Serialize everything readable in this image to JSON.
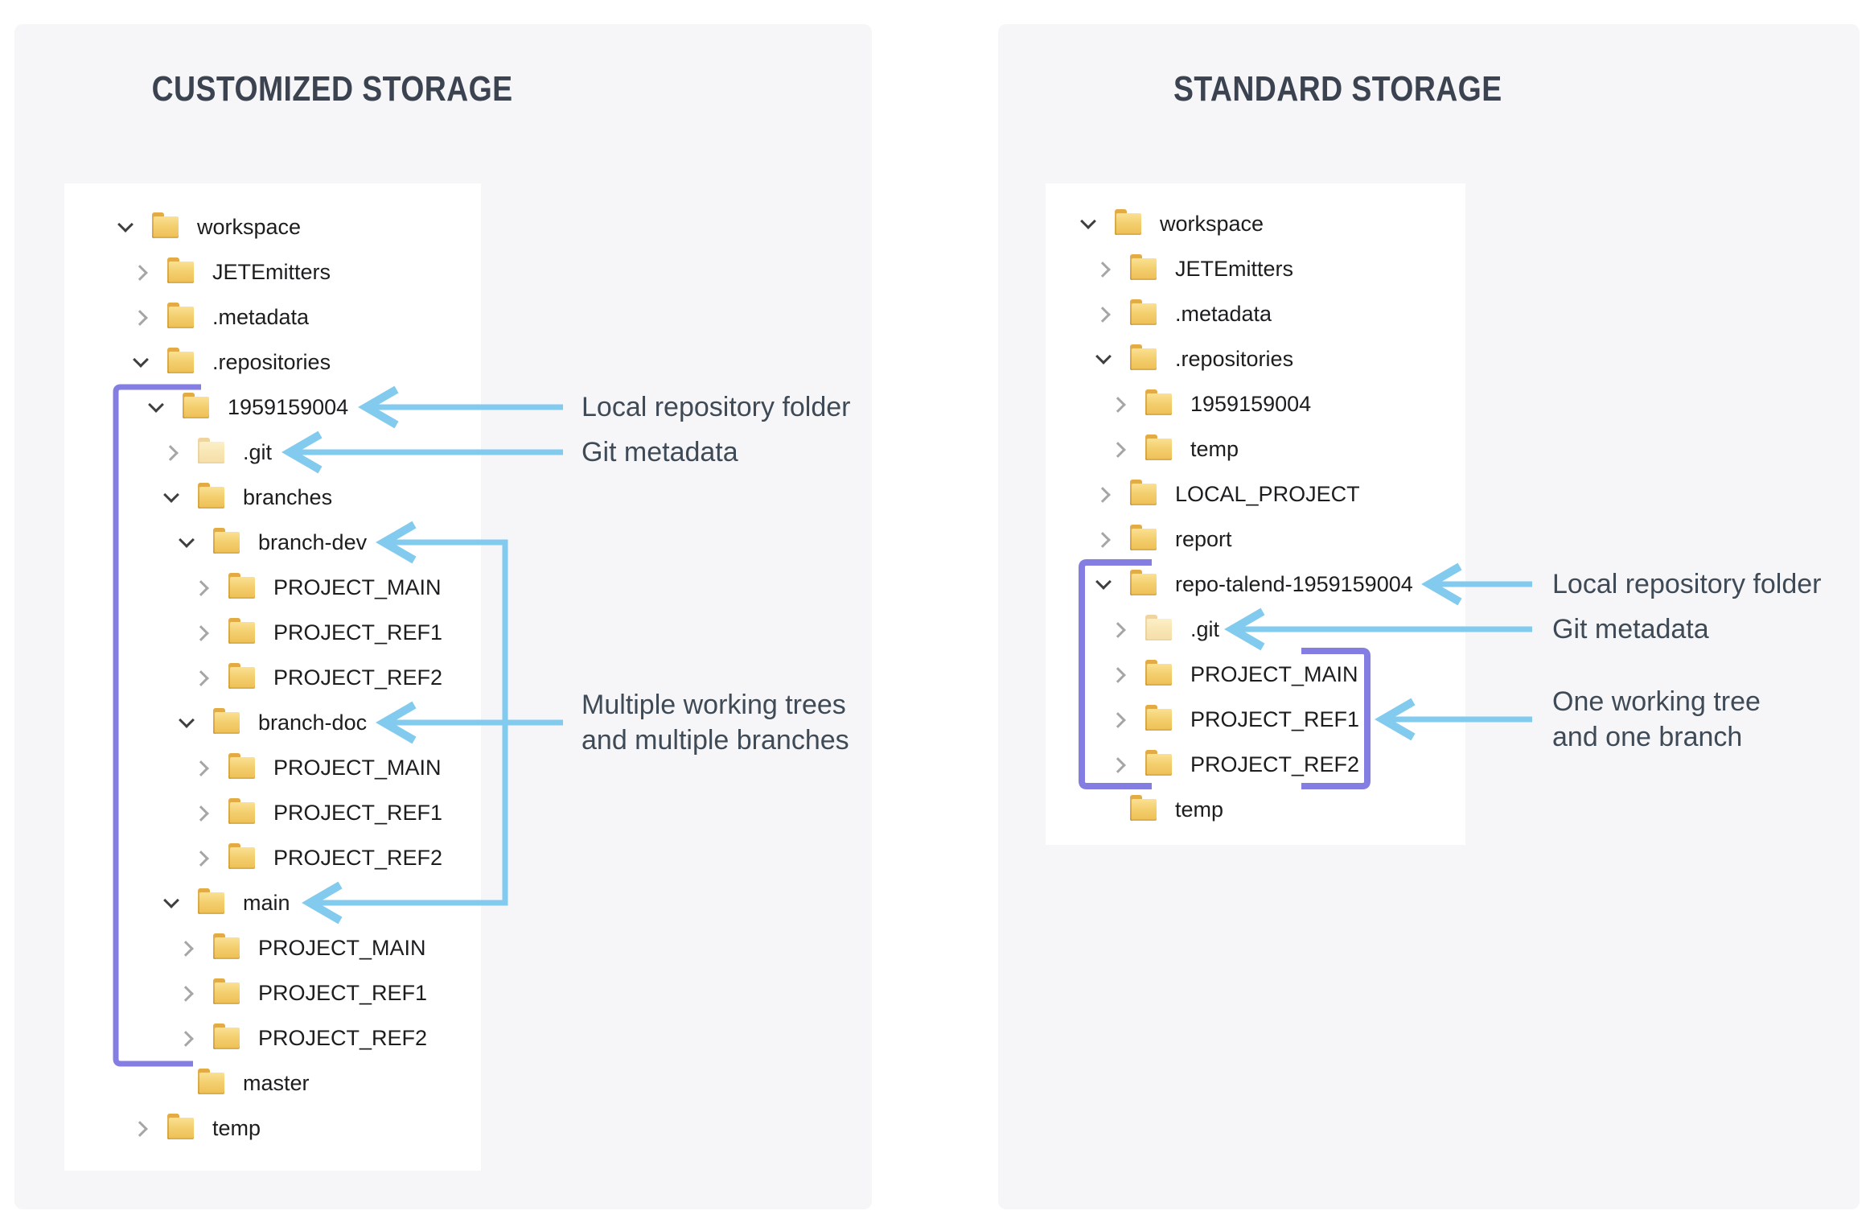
{
  "colors": {
    "arrow": "#82cbee",
    "bracket": "#857ee2",
    "folder": "#f2c860",
    "title_text": "#3b4250",
    "annotation_text": "#3f4a57",
    "card_background": "#f6f6f8",
    "panel_background": "#ffffff"
  },
  "left_panel": {
    "title": "CUSTOMIZED STORAGE",
    "tree": [
      {
        "label": "workspace",
        "level": 0,
        "state": "open"
      },
      {
        "label": "JETEmitters",
        "level": 1,
        "state": "closed"
      },
      {
        "label": ".metadata",
        "level": 1,
        "state": "closed"
      },
      {
        "label": ".repositories",
        "level": 1,
        "state": "open"
      },
      {
        "label": "1959159004",
        "level": 2,
        "state": "open"
      },
      {
        "label": ".git",
        "level": 3,
        "state": "closed",
        "faded": true
      },
      {
        "label": "branches",
        "level": 3,
        "state": "open"
      },
      {
        "label": "branch-dev",
        "level": 4,
        "state": "open"
      },
      {
        "label": "PROJECT_MAIN",
        "level": 5,
        "state": "closed"
      },
      {
        "label": "PROJECT_REF1",
        "level": 5,
        "state": "closed"
      },
      {
        "label": "PROJECT_REF2",
        "level": 5,
        "state": "closed"
      },
      {
        "label": "branch-doc",
        "level": 4,
        "state": "open"
      },
      {
        "label": "PROJECT_MAIN",
        "level": 5,
        "state": "closed"
      },
      {
        "label": "PROJECT_REF1",
        "level": 5,
        "state": "closed"
      },
      {
        "label": "PROJECT_REF2",
        "level": 5,
        "state": "closed"
      },
      {
        "label": "main",
        "level": 3,
        "state": "open"
      },
      {
        "label": "PROJECT_MAIN",
        "level": 4,
        "state": "closed"
      },
      {
        "label": "PROJECT_REF1",
        "level": 4,
        "state": "closed"
      },
      {
        "label": "PROJECT_REF2",
        "level": 4,
        "state": "closed"
      },
      {
        "label": "master",
        "level": 3,
        "state": "none"
      },
      {
        "label": "temp",
        "level": 1,
        "state": "closed"
      }
    ],
    "annotations": {
      "local_repo": "Local repository folder",
      "git_metadata": "Git metadata",
      "working_trees_line1": "Multiple working trees",
      "working_trees_line2": "and multiple branches"
    }
  },
  "right_panel": {
    "title": "STANDARD STORAGE",
    "tree": [
      {
        "label": "workspace",
        "level": 0,
        "state": "open"
      },
      {
        "label": "JETEmitters",
        "level": 1,
        "state": "closed"
      },
      {
        "label": ".metadata",
        "level": 1,
        "state": "closed"
      },
      {
        "label": ".repositories",
        "level": 1,
        "state": "open"
      },
      {
        "label": "1959159004",
        "level": 2,
        "state": "closed"
      },
      {
        "label": "temp",
        "level": 2,
        "state": "closed"
      },
      {
        "label": "LOCAL_PROJECT",
        "level": 1,
        "state": "closed"
      },
      {
        "label": "report",
        "level": 1,
        "state": "closed"
      },
      {
        "label": "repo-talend-1959159004",
        "level": 1,
        "state": "open"
      },
      {
        "label": ".git",
        "level": 2,
        "state": "closed",
        "faded": true
      },
      {
        "label": "PROJECT_MAIN",
        "level": 2,
        "state": "closed"
      },
      {
        "label": "PROJECT_REF1",
        "level": 2,
        "state": "closed"
      },
      {
        "label": "PROJECT_REF2",
        "level": 2,
        "state": "closed"
      },
      {
        "label": "temp",
        "level": 1,
        "state": "none"
      }
    ],
    "annotations": {
      "local_repo": "Local repository folder",
      "git_metadata": "Git metadata",
      "working_tree_line1": "One working tree",
      "working_tree_line2": "and one branch"
    }
  }
}
